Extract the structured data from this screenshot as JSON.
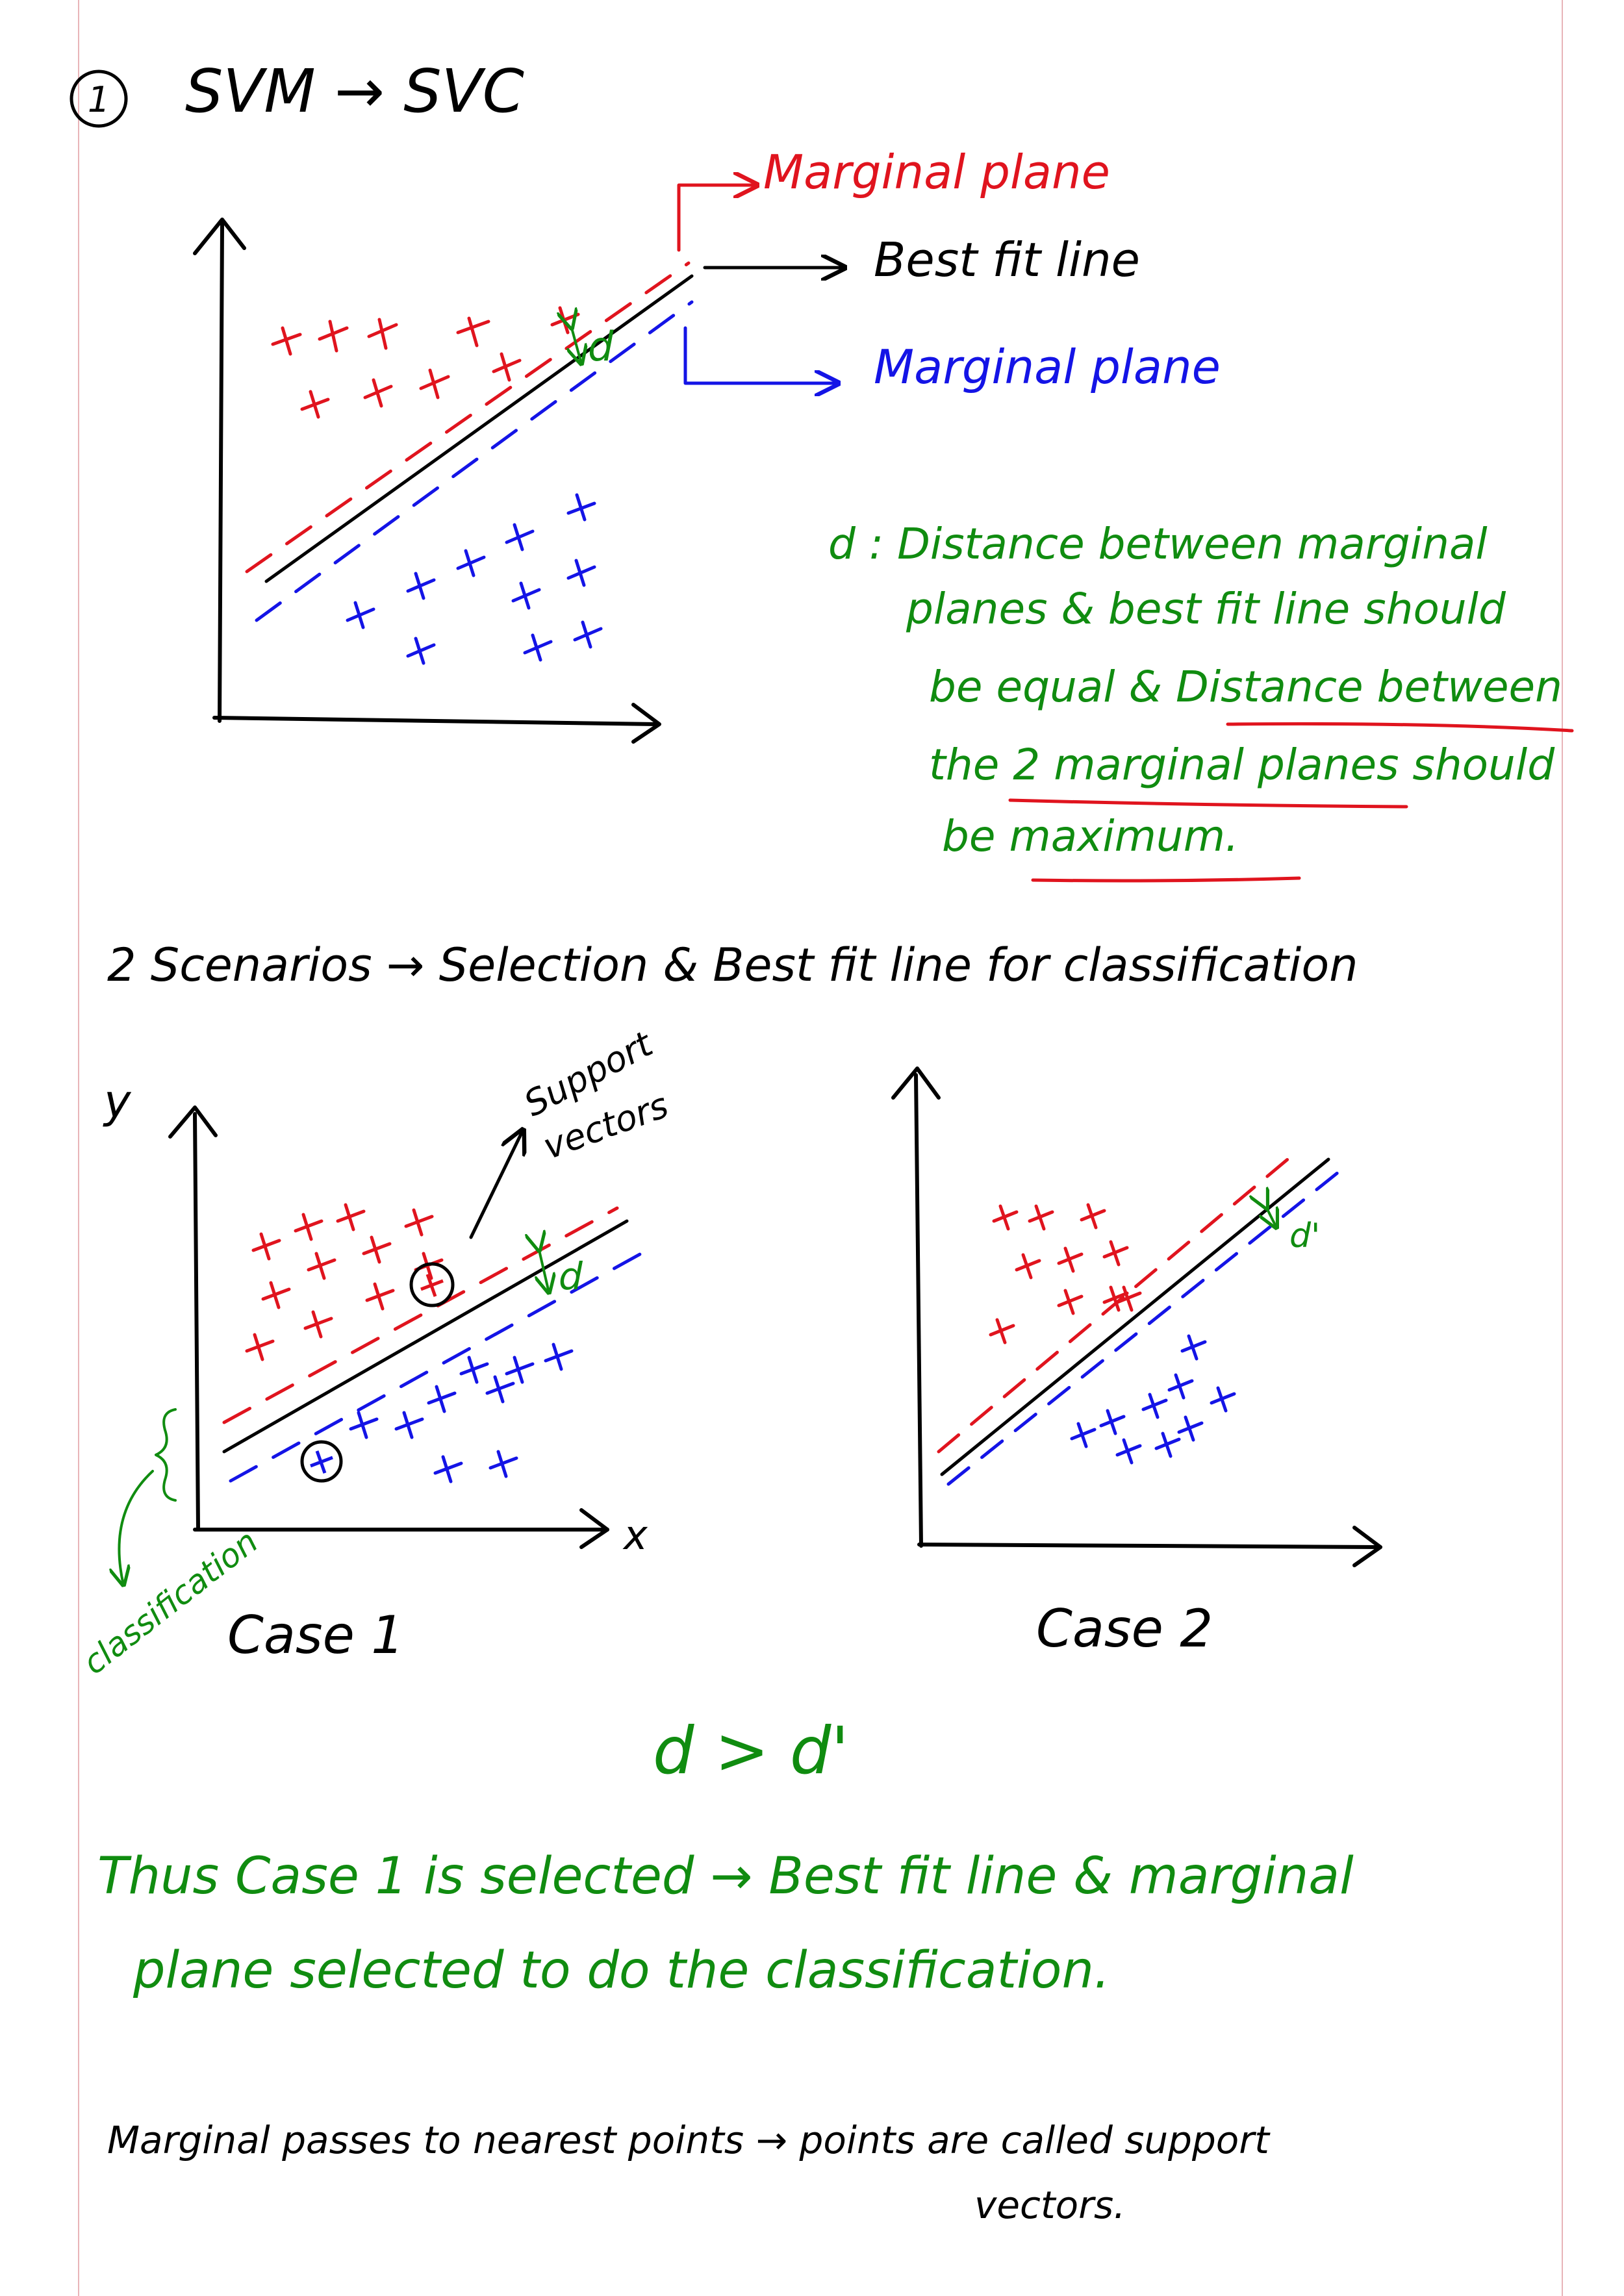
{
  "colors": {
    "ink": "#000000",
    "red": "#e0141e",
    "blue": "#1414e6",
    "green": "#108c10",
    "margin_rule": "#e8b4b8"
  },
  "heading": {
    "number": "1",
    "text": "SVM → SVC"
  },
  "diagram1": {
    "red_label": "Marginal plane",
    "black_label": "Best fit line",
    "blue_label": "Marginal plane",
    "d_label": "d"
  },
  "definition": {
    "lines": [
      "d : Distance between marginal",
      "planes & best fit line should",
      "be equal & Distance between",
      "the 2 marginal planes should",
      "be maximum."
    ]
  },
  "scenarios_line": "2 Scenarios → Selection & Best fit line for classification",
  "case1": {
    "y_label": "y",
    "x_label": "x",
    "support_label_1": "Support",
    "support_label_2": "vectors",
    "d_label": "d",
    "side_label": "classification",
    "caption": "Case 1"
  },
  "case2": {
    "d_label": "d'",
    "caption": "Case 2"
  },
  "comparison": "d > d'",
  "conclusion": {
    "line1": "Thus Case 1 is selected → Best fit line & marginal",
    "line2": "plane selected to do the classification."
  },
  "footnote": {
    "line1": "Marginal passes to nearest points → points are called support",
    "line2": "vectors."
  }
}
